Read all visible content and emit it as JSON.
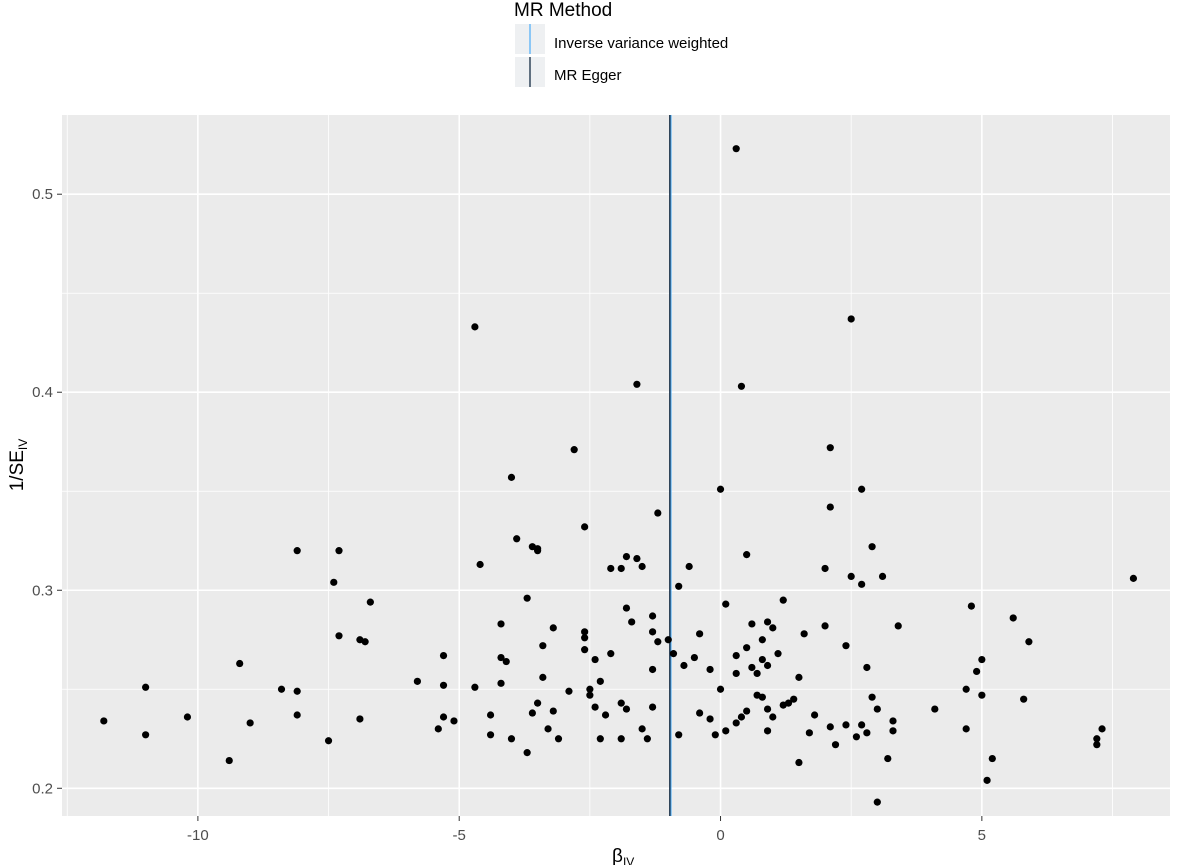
{
  "chart_data": {
    "type": "scatter",
    "title": "",
    "xlabel": "β",
    "xlabel_sub": "IV",
    "ylabel": "1/SE",
    "ylabel_sub": "IV",
    "xlim": [
      -12.6,
      8.6
    ],
    "ylim": [
      0.186,
      0.54
    ],
    "x_ticks": [
      -10,
      -5,
      0,
      5
    ],
    "x_tick_labels": [
      "-10",
      "-5",
      "0",
      "5"
    ],
    "y_ticks": [
      0.2,
      0.3,
      0.4,
      0.5
    ],
    "y_tick_labels": [
      "0.2",
      "0.3",
      "0.4",
      "0.5"
    ],
    "grid": true,
    "legend": {
      "title": "MR Method",
      "position": "top",
      "entries": [
        {
          "label": "Inverse variance weighted",
          "color": "#56B1F7",
          "slope": -0.95
        },
        {
          "label": "MR Egger",
          "color": "#132B43",
          "slope": -0.97
        }
      ]
    },
    "colors": {
      "panel": "#ebebeb",
      "grid_major": "#ffffff",
      "points": "#000000"
    },
    "points": [
      [
        0.3,
        0.523
      ],
      [
        -4.7,
        0.433
      ],
      [
        2.5,
        0.437
      ],
      [
        -1.6,
        0.404
      ],
      [
        0.4,
        0.403
      ],
      [
        -2.8,
        0.371
      ],
      [
        2.1,
        0.372
      ],
      [
        -4.0,
        0.357
      ],
      [
        0.0,
        0.351
      ],
      [
        2.7,
        0.351
      ],
      [
        -1.2,
        0.339
      ],
      [
        2.1,
        0.342
      ],
      [
        -2.6,
        0.332
      ],
      [
        -3.9,
        0.326
      ],
      [
        -3.6,
        0.322
      ],
      [
        -3.5,
        0.321
      ],
      [
        -3.5,
        0.32
      ],
      [
        -8.1,
        0.32
      ],
      [
        -7.3,
        0.32
      ],
      [
        2.9,
        0.322
      ],
      [
        0.5,
        0.318
      ],
      [
        -1.8,
        0.317
      ],
      [
        -1.6,
        0.316
      ],
      [
        -1.5,
        0.312
      ],
      [
        -4.6,
        0.313
      ],
      [
        -2.1,
        0.311
      ],
      [
        -1.9,
        0.311
      ],
      [
        -0.6,
        0.312
      ],
      [
        2.0,
        0.311
      ],
      [
        2.5,
        0.307
      ],
      [
        3.1,
        0.307
      ],
      [
        2.7,
        0.303
      ],
      [
        -7.4,
        0.304
      ],
      [
        -0.8,
        0.302
      ],
      [
        7.9,
        0.306
      ],
      [
        -3.7,
        0.296
      ],
      [
        -6.7,
        0.294
      ],
      [
        0.1,
        0.293
      ],
      [
        1.2,
        0.295
      ],
      [
        4.8,
        0.292
      ],
      [
        -1.8,
        0.291
      ],
      [
        -1.3,
        0.287
      ],
      [
        -1.7,
        0.284
      ],
      [
        -4.2,
        0.283
      ],
      [
        0.6,
        0.283
      ],
      [
        0.9,
        0.284
      ],
      [
        1.0,
        0.281
      ],
      [
        2.0,
        0.282
      ],
      [
        3.4,
        0.282
      ],
      [
        -3.2,
        0.281
      ],
      [
        5.6,
        0.286
      ],
      [
        5.9,
        0.274
      ],
      [
        -1.3,
        0.279
      ],
      [
        -2.6,
        0.279
      ],
      [
        -2.6,
        0.276
      ],
      [
        -7.3,
        0.277
      ],
      [
        -6.9,
        0.275
      ],
      [
        -6.8,
        0.274
      ],
      [
        -0.4,
        0.278
      ],
      [
        1.6,
        0.278
      ],
      [
        0.8,
        0.275
      ],
      [
        -1.2,
        0.274
      ],
      [
        -1.0,
        0.275
      ],
      [
        -3.4,
        0.272
      ],
      [
        -0.9,
        0.268
      ],
      [
        -2.6,
        0.27
      ],
      [
        -2.1,
        0.268
      ],
      [
        0.3,
        0.267
      ],
      [
        0.5,
        0.271
      ],
      [
        1.1,
        0.268
      ],
      [
        2.4,
        0.272
      ],
      [
        -0.5,
        0.266
      ],
      [
        -4.2,
        0.266
      ],
      [
        -4.1,
        0.264
      ],
      [
        -5.3,
        0.267
      ],
      [
        5.0,
        0.265
      ],
      [
        -2.4,
        0.265
      ],
      [
        -0.2,
        0.26
      ],
      [
        0.3,
        0.258
      ],
      [
        0.6,
        0.261
      ],
      [
        0.9,
        0.262
      ],
      [
        0.8,
        0.265
      ],
      [
        1.5,
        0.256
      ],
      [
        -1.3,
        0.26
      ],
      [
        -0.7,
        0.262
      ],
      [
        2.8,
        0.261
      ],
      [
        4.9,
        0.259
      ],
      [
        -9.2,
        0.263
      ],
      [
        -11.0,
        0.251
      ],
      [
        -5.8,
        0.254
      ],
      [
        -5.3,
        0.252
      ],
      [
        -4.7,
        0.251
      ],
      [
        -4.2,
        0.253
      ],
      [
        -3.4,
        0.256
      ],
      [
        -2.9,
        0.249
      ],
      [
        -2.5,
        0.25
      ],
      [
        -2.3,
        0.254
      ],
      [
        0.0,
        0.25
      ],
      [
        0.7,
        0.258
      ],
      [
        -8.4,
        0.25
      ],
      [
        -8.1,
        0.249
      ],
      [
        4.7,
        0.25
      ],
      [
        -3.5,
        0.243
      ],
      [
        -2.5,
        0.247
      ],
      [
        -1.9,
        0.243
      ],
      [
        -1.8,
        0.24
      ],
      [
        -1.3,
        0.241
      ],
      [
        0.7,
        0.247
      ],
      [
        0.8,
        0.246
      ],
      [
        1.3,
        0.243
      ],
      [
        1.4,
        0.245
      ],
      [
        2.9,
        0.246
      ],
      [
        5.0,
        0.247
      ],
      [
        5.8,
        0.245
      ],
      [
        -8.1,
        0.237
      ],
      [
        -10.2,
        0.236
      ],
      [
        -11.8,
        0.234
      ],
      [
        -9.0,
        0.233
      ],
      [
        -6.9,
        0.235
      ],
      [
        -5.3,
        0.236
      ],
      [
        -5.1,
        0.234
      ],
      [
        -4.4,
        0.237
      ],
      [
        -3.6,
        0.238
      ],
      [
        -3.2,
        0.239
      ],
      [
        -2.4,
        0.241
      ],
      [
        -2.2,
        0.237
      ],
      [
        -0.4,
        0.238
      ],
      [
        0.5,
        0.239
      ],
      [
        0.9,
        0.24
      ],
      [
        1.2,
        0.242
      ],
      [
        1.8,
        0.237
      ],
      [
        2.1,
        0.231
      ],
      [
        2.4,
        0.232
      ],
      [
        3.0,
        0.24
      ],
      [
        3.3,
        0.234
      ],
      [
        4.1,
        0.24
      ],
      [
        0.4,
        0.236
      ],
      [
        0.3,
        0.233
      ],
      [
        -0.2,
        0.235
      ],
      [
        1.0,
        0.236
      ],
      [
        -11.0,
        0.227
      ],
      [
        -5.4,
        0.23
      ],
      [
        -4.4,
        0.227
      ],
      [
        -4.0,
        0.225
      ],
      [
        -3.3,
        0.23
      ],
      [
        -3.1,
        0.225
      ],
      [
        -2.3,
        0.225
      ],
      [
        -1.9,
        0.225
      ],
      [
        -1.5,
        0.23
      ],
      [
        -1.4,
        0.225
      ],
      [
        -0.8,
        0.227
      ],
      [
        -0.1,
        0.227
      ],
      [
        0.1,
        0.229
      ],
      [
        0.9,
        0.229
      ],
      [
        1.7,
        0.228
      ],
      [
        2.6,
        0.226
      ],
      [
        2.8,
        0.228
      ],
      [
        3.3,
        0.229
      ],
      [
        4.7,
        0.23
      ],
      [
        7.2,
        0.225
      ],
      [
        7.3,
        0.23
      ],
      [
        -7.5,
        0.224
      ],
      [
        -3.7,
        0.218
      ],
      [
        2.2,
        0.222
      ],
      [
        2.7,
        0.232
      ],
      [
        7.2,
        0.222
      ],
      [
        -9.4,
        0.214
      ],
      [
        1.5,
        0.213
      ],
      [
        3.2,
        0.215
      ],
      [
        5.2,
        0.215
      ],
      [
        5.1,
        0.204
      ],
      [
        3.0,
        0.193
      ]
    ]
  }
}
